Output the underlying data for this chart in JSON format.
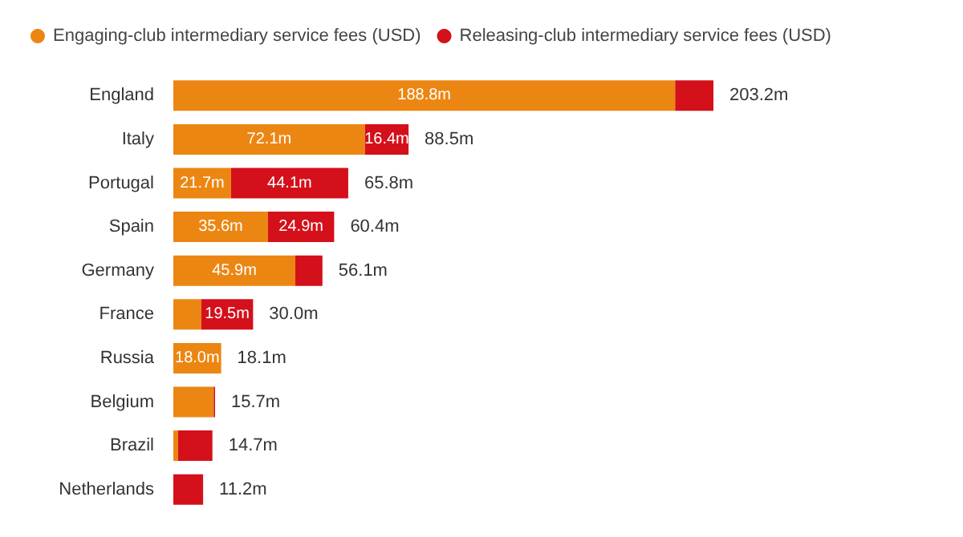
{
  "chart_data": {
    "type": "bar",
    "orientation": "horizontal",
    "stacked": true,
    "legend": "top left",
    "categories": [
      "England",
      "Italy",
      "Portugal",
      "Spain",
      "Germany",
      "France",
      "Russia",
      "Belgium",
      "Brazil",
      "Netherlands"
    ],
    "series": [
      {
        "name": "Engaging-club intermediary service fees (USD)",
        "color": "#ec8612",
        "values": [
          188.8,
          72.1,
          21.7,
          35.6,
          45.9,
          10.5,
          18.0,
          15.2,
          1.8,
          0
        ],
        "value_labels": [
          "188.8m",
          "72.1m",
          "21.7m",
          "35.6m",
          "45.9m",
          null,
          "18.0m",
          null,
          null,
          null
        ]
      },
      {
        "name": "Releasing-club intermediary service fees (USD)",
        "color": "#d4101a",
        "values": [
          14.4,
          16.4,
          44.1,
          24.9,
          10.2,
          19.5,
          null,
          0.5,
          12.9,
          11.2
        ],
        "value_labels": [
          null,
          "16.4m",
          "44.1m",
          "24.9m",
          null,
          "19.5m",
          null,
          null,
          null,
          null
        ]
      }
    ],
    "totals": [
      "203.2m",
      "88.5m",
      "65.8m",
      "60.4m",
      "56.1m",
      "30.0m",
      "18.1m",
      "15.7m",
      "14.7m",
      "11.2m"
    ]
  }
}
